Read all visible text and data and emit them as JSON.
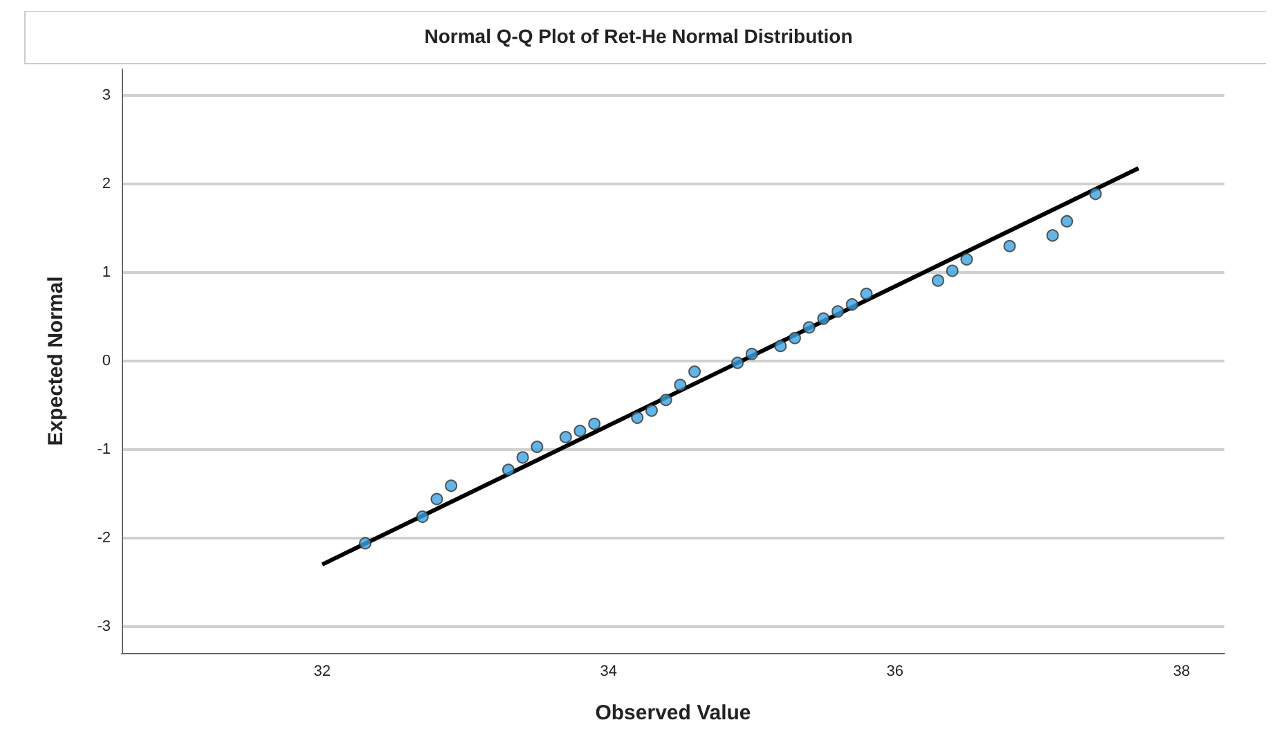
{
  "chart_data": {
    "type": "scatter",
    "title": "Normal Q-Q Plot of Ret-He Normal Distribution",
    "xlabel": "Observed Value",
    "ylabel": "Expected Normal",
    "xlim": [
      30.6,
      38.3
    ],
    "xticks": [
      32,
      34,
      36,
      38
    ],
    "ylim": [
      -3.3,
      3.3
    ],
    "yticks": [
      -3,
      -2,
      -1,
      0,
      1,
      2,
      3
    ],
    "grid": "y",
    "marker": "circle",
    "series": [
      {
        "color": "#3ba3e0",
        "x": [
          32.3,
          32.7,
          32.8,
          32.9,
          33.3,
          33.4,
          33.5,
          33.7,
          33.8,
          33.9,
          34.2,
          34.3,
          34.4,
          34.5,
          34.6,
          34.9,
          35.0,
          35.2,
          35.3,
          35.4,
          35.5,
          35.6,
          35.7,
          35.8,
          36.3,
          36.4,
          36.5,
          36.8,
          37.1,
          37.2,
          37.4
        ],
        "values": [
          -2.06,
          -1.76,
          -1.56,
          -1.41,
          -1.23,
          -1.09,
          -0.97,
          -0.86,
          -0.79,
          -0.71,
          -0.64,
          -0.56,
          -0.44,
          -0.27,
          -0.12,
          -0.02,
          0.08,
          0.17,
          0.26,
          0.38,
          0.48,
          0.56,
          0.64,
          0.76,
          0.91,
          1.02,
          1.15,
          1.3,
          1.42,
          1.58,
          1.89
        ]
      },
      {
        "type": "line",
        "color": "#000000",
        "x": [
          32.0,
          37.7
        ],
        "values": [
          -2.3,
          2.18
        ],
        "marker": "none"
      }
    ]
  }
}
